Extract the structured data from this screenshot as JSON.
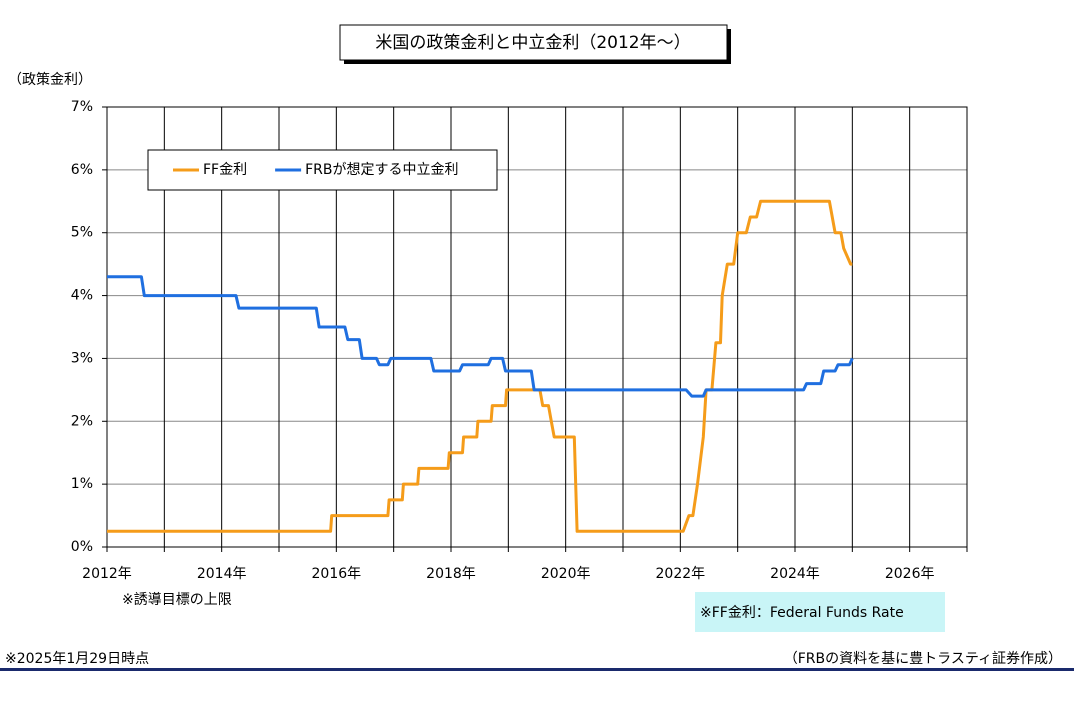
{
  "chart_data": {
    "type": "line",
    "title": "米国の政策金利と中立金利（2012年～）",
    "ylabel": "（政策金利）",
    "annotations": [
      "※誘導目標の上限",
      "※FF金利：Federal Funds Rate"
    ],
    "footnote_left": "※2025年1月29日時点",
    "footnote_right": "（FRBの資料を基に豊トラスティ証券作成）",
    "xlim": [
      2012,
      2027
    ],
    "xticks": [
      {
        "value": 2012,
        "label": "2012年"
      },
      {
        "value": 2014,
        "label": "2014年"
      },
      {
        "value": 2016,
        "label": "2016年"
      },
      {
        "value": 2018,
        "label": "2018年"
      },
      {
        "value": 2020,
        "label": "2020年"
      },
      {
        "value": 2022,
        "label": "2022年"
      },
      {
        "value": 2024,
        "label": "2024年"
      },
      {
        "value": 2026,
        "label": "2026年"
      }
    ],
    "x_minor_ticks": [
      2013,
      2015,
      2017,
      2019,
      2021,
      2023,
      2025,
      2027
    ],
    "ylim": [
      0,
      7
    ],
    "yticks": [
      {
        "value": 0,
        "label": "0%"
      },
      {
        "value": 1,
        "label": "1%"
      },
      {
        "value": 2,
        "label": "2%"
      },
      {
        "value": 3,
        "label": "3%"
      },
      {
        "value": 4,
        "label": "4%"
      },
      {
        "value": 5,
        "label": "5%"
      },
      {
        "value": 6,
        "label": "6%"
      },
      {
        "value": 7,
        "label": "7%"
      }
    ],
    "grid": true,
    "legend": "upper left",
    "series": [
      {
        "name": "FF金利",
        "color": "#f59c1a",
        "x": [
          2012,
          2015.9,
          2015.92,
          2016.9,
          2016.92,
          2017.15,
          2017.17,
          2017.42,
          2017.44,
          2017.95,
          2017.97,
          2018.2,
          2018.22,
          2018.45,
          2018.47,
          2018.7,
          2018.72,
          2018.95,
          2018.97,
          2019.55,
          2019.6,
          2019.7,
          2019.75,
          2019.8,
          2019.85,
          2020.15,
          2020.2,
          2022.05,
          2022.15,
          2022.22,
          2022.3,
          2022.4,
          2022.45,
          2022.55,
          2022.62,
          2022.7,
          2022.73,
          2022.82,
          2022.93,
          2023.0,
          2023.15,
          2023.22,
          2023.33,
          2023.4,
          2023.52,
          2024.6,
          2024.7,
          2024.8,
          2024.85,
          2024.97,
          2025.0
        ],
        "values": [
          0.25,
          0.25,
          0.5,
          0.5,
          0.75,
          0.75,
          1.0,
          1.0,
          1.25,
          1.25,
          1.5,
          1.5,
          1.75,
          1.75,
          2.0,
          2.0,
          2.25,
          2.25,
          2.5,
          2.5,
          2.25,
          2.25,
          2.0,
          1.75,
          1.75,
          1.75,
          0.25,
          0.25,
          0.5,
          0.5,
          1.0,
          1.75,
          2.5,
          2.5,
          3.25,
          3.25,
          4.0,
          4.5,
          4.5,
          5.0,
          5.0,
          5.25,
          5.25,
          5.5,
          5.5,
          5.5,
          5.0,
          5.0,
          4.75,
          4.5,
          4.5
        ]
      },
      {
        "name": "FRBが想定する中立金利",
        "color": "#1f6fe0",
        "x": [
          2012,
          2012.6,
          2012.65,
          2014.25,
          2014.3,
          2015.65,
          2015.7,
          2016.15,
          2016.2,
          2016.4,
          2016.45,
          2016.7,
          2016.75,
          2016.9,
          2016.95,
          2017.65,
          2017.7,
          2018.15,
          2018.2,
          2018.65,
          2018.7,
          2018.9,
          2018.95,
          2019.4,
          2019.45,
          2022.1,
          2022.2,
          2022.4,
          2022.45,
          2024.15,
          2024.2,
          2024.45,
          2024.5,
          2024.7,
          2024.75,
          2024.95,
          2025.0
        ],
        "values": [
          4.3,
          4.3,
          4.0,
          4.0,
          3.8,
          3.8,
          3.5,
          3.5,
          3.3,
          3.3,
          3.0,
          3.0,
          2.9,
          2.9,
          3.0,
          3.0,
          2.8,
          2.8,
          2.9,
          2.9,
          3.0,
          3.0,
          2.8,
          2.8,
          2.5,
          2.5,
          2.4,
          2.4,
          2.5,
          2.5,
          2.6,
          2.6,
          2.8,
          2.8,
          2.9,
          2.9,
          3.0
        ]
      }
    ]
  }
}
